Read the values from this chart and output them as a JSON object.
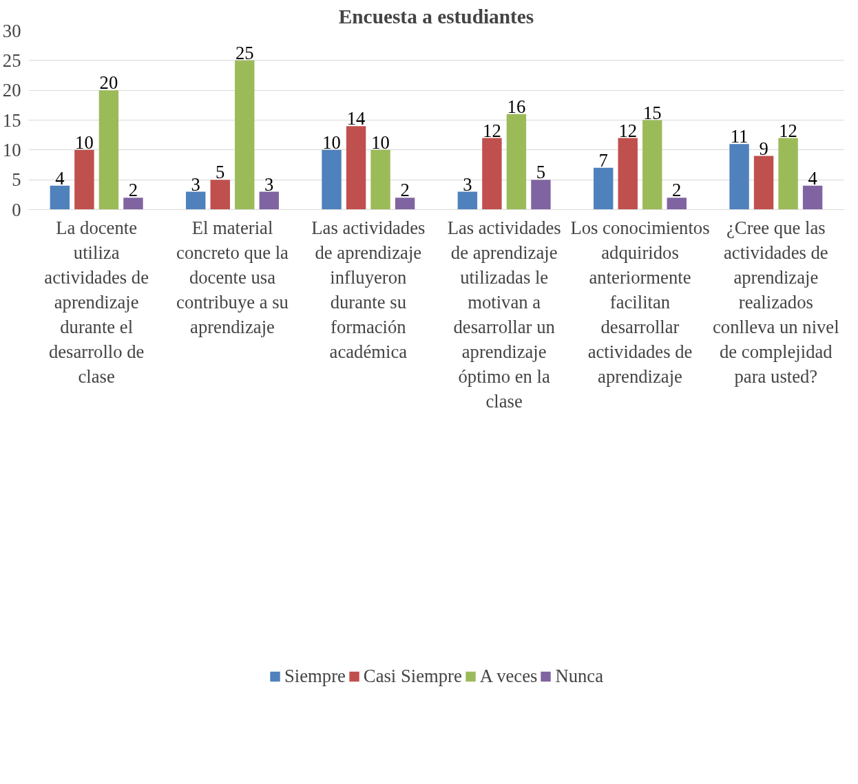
{
  "chart_data": {
    "type": "bar",
    "title": "Encuesta a estudiantes",
    "categories": [
      "La docente utiliza actividades de aprendizaje durante el desarrollo de clase",
      "El material concreto que la docente usa contribuye a su aprendizaje",
      "Las actividades de aprendizaje influyeron durante su formación académica",
      "Las actividades de aprendizaje utilizadas le motivan a desarrollar un aprendizaje óptimo en la clase",
      "Los conocimientos adquiridos anteriormente facilitan desarrollar actividades de aprendizaje",
      "¿Cree que las actividades de aprendizaje realizados conlleva un nivel de complejidad para usted?"
    ],
    "series": [
      {
        "name": "Siempre",
        "color": "#4f81bd",
        "values": [
          4,
          3,
          10,
          3,
          7,
          11
        ]
      },
      {
        "name": "Casi Siempre",
        "color": "#c0504d",
        "values": [
          10,
          5,
          14,
          12,
          12,
          9
        ]
      },
      {
        "name": "A veces",
        "color": "#9bbb59",
        "values": [
          20,
          25,
          10,
          16,
          15,
          12
        ]
      },
      {
        "name": "Nunca",
        "color": "#8064a2",
        "values": [
          2,
          3,
          2,
          5,
          2,
          4
        ]
      }
    ],
    "ylim": [
      0,
      30
    ],
    "yticks": [
      0,
      5,
      10,
      15,
      20,
      25,
      30
    ],
    "grid": "y",
    "legend": "bottom",
    "data_labels": true
  }
}
